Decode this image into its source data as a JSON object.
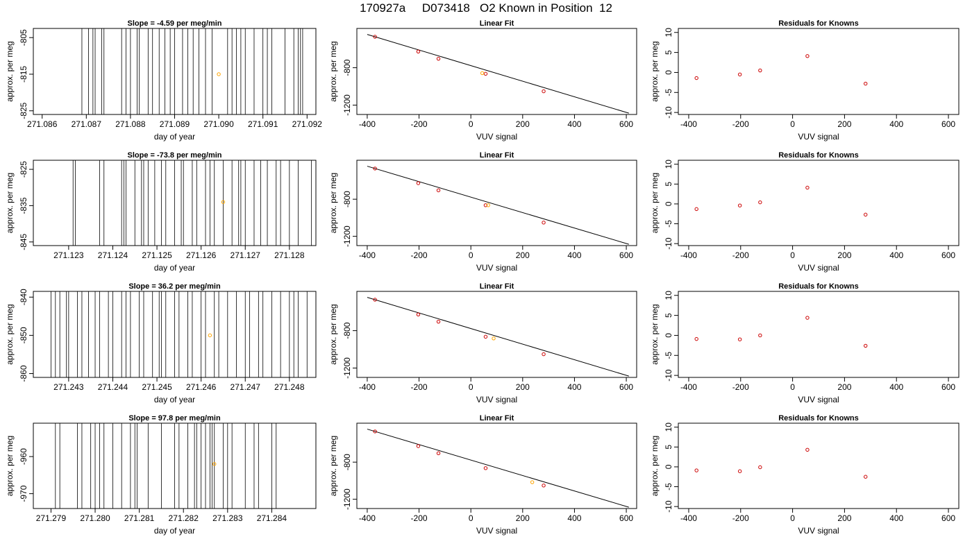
{
  "page": {
    "title": "170927a     D073418   O2 Known in Position  12"
  },
  "chart_data": [
    {
      "type": "line",
      "kind": "timeseries",
      "title": "Slope =  -4.59  per meg/min",
      "xlabel": "day of year",
      "ylabel": "approx. per meg",
      "xlim": [
        271.0858,
        271.0922
      ],
      "ylim": [
        -826,
        -802.5
      ],
      "xticks": [
        "271.086",
        "271.087",
        "271.088",
        "271.089",
        "271.090",
        "271.091",
        "271.092"
      ],
      "yticks": [
        "-805",
        "-815",
        "-825"
      ],
      "grid": false,
      "vlines": [
        271.0869,
        271.08705,
        271.08715,
        271.0872,
        271.08735,
        271.0874,
        271.0878,
        271.0879,
        271.088,
        271.08815,
        271.0882,
        271.0884,
        271.0885,
        271.08865,
        271.08878,
        271.0889,
        271.089,
        271.08918,
        271.0893,
        271.08942,
        271.08955,
        271.0897,
        271.08985,
        271.0902,
        271.0903,
        271.0904,
        271.0905,
        271.0906,
        271.0908,
        271.091,
        271.0911,
        271.0912,
        271.0915,
        271.0917,
        271.0918,
        271.09185,
        271.0919
      ],
      "highlight": {
        "x": 271.09,
        "y": -815
      },
      "series_color": "#000000",
      "highlight_color": "#ffa500"
    },
    {
      "type": "scatter",
      "kind": "fit",
      "title": "Linear Fit",
      "xlabel": "VUV signal",
      "ylabel": "approx. per meg",
      "xlim": [
        -440,
        640
      ],
      "ylim": [
        -1300,
        -380
      ],
      "xticks": [
        "-400",
        "-200",
        "0",
        "200",
        "400",
        "600"
      ],
      "yticks": [
        "-800",
        "-1200"
      ],
      "x": [
        -370,
        -203,
        -125,
        57,
        281
      ],
      "y": [
        -469,
        -627,
        -704,
        -865,
        -1052
      ],
      "line": [
        [
          -400,
          -444
        ],
        [
          610,
          -1286
        ]
      ],
      "highlight": {
        "x": 44,
        "y": -858
      },
      "point_color": "#cc0000",
      "highlight_color": "#ffa500"
    },
    {
      "type": "scatter",
      "kind": "residual",
      "title": "Residuals for Knowns",
      "xlabel": "VUV signal",
      "ylabel": "approx. per meg",
      "xlim": [
        -440,
        640
      ],
      "ylim": [
        -10.5,
        11
      ],
      "xticks": [
        "-400",
        "-200",
        "0",
        "200",
        "400",
        "600"
      ],
      "yticks": [
        "-10",
        "-5",
        "0",
        "5",
        "10"
      ],
      "x": [
        -370,
        -203,
        -125,
        57,
        281
      ],
      "y": [
        -1.4,
        -0.5,
        0.5,
        4.1,
        -2.8
      ],
      "point_color": "#cc0000"
    },
    {
      "type": "line",
      "kind": "timeseries",
      "title": "Slope =  -73.8  per meg/min",
      "xlabel": "day of year",
      "ylabel": "approx. per meg",
      "xlim": [
        271.1222,
        271.1286
      ],
      "ylim": [
        -846,
        -822.5
      ],
      "xticks": [
        "271.123",
        "271.124",
        "271.125",
        "271.126",
        "271.127",
        "271.128"
      ],
      "yticks": [
        "-825",
        "-835",
        "-845"
      ],
      "grid": false,
      "vlines": [
        271.1231,
        271.12315,
        271.1237,
        271.1238,
        271.1242,
        271.12425,
        271.1243,
        271.1245,
        271.12465,
        271.1247,
        271.1248,
        271.12495,
        271.1251,
        271.1252,
        271.1254,
        271.12555,
        271.1256,
        271.1258,
        271.1259,
        271.1261,
        271.1262,
        271.1263,
        271.1265,
        271.1267,
        271.12685,
        271.1269,
        271.127,
        271.1272,
        271.12735,
        271.1275,
        271.1277,
        271.1278,
        271.128,
        271.1282,
        271.1285
      ],
      "highlight": {
        "x": 271.1265,
        "y": -834
      },
      "series_color": "#000000",
      "highlight_color": "#ffa500"
    },
    {
      "type": "scatter",
      "kind": "fit",
      "title": "Linear Fit",
      "xlabel": "VUV signal",
      "ylabel": "approx. per meg",
      "xlim": [
        -440,
        640
      ],
      "ylim": [
        -1300,
        -380
      ],
      "xticks": [
        "-400",
        "-200",
        "0",
        "200",
        "400",
        "600"
      ],
      "yticks": [
        "-800",
        "-1200"
      ],
      "x": [
        -370,
        -203,
        -125,
        57,
        281
      ],
      "y": [
        -469,
        -627,
        -704,
        -865,
        -1052
      ],
      "line": [
        [
          -400,
          -444
        ],
        [
          610,
          -1286
        ]
      ],
      "highlight": {
        "x": 67,
        "y": -865
      },
      "point_color": "#cc0000",
      "highlight_color": "#ffa500"
    },
    {
      "type": "scatter",
      "kind": "residual",
      "title": "Residuals for Knowns",
      "xlabel": "VUV signal",
      "ylabel": "approx. per meg",
      "xlim": [
        -440,
        640
      ],
      "ylim": [
        -10.5,
        11
      ],
      "xticks": [
        "-400",
        "-200",
        "0",
        "200",
        "400",
        "600"
      ],
      "yticks": [
        "-10",
        "-5",
        "0",
        "5",
        "10"
      ],
      "x": [
        -370,
        -203,
        -125,
        57,
        281
      ],
      "y": [
        -1.3,
        -0.4,
        0.4,
        4.1,
        -2.7
      ],
      "point_color": "#cc0000"
    },
    {
      "type": "line",
      "kind": "timeseries",
      "title": "Slope =  36.2  per meg/min",
      "xlabel": "day of year",
      "ylabel": "approx. per meg",
      "xlim": [
        271.2422,
        271.2486
      ],
      "ylim": [
        -861,
        -838.5
      ],
      "xticks": [
        "271.243",
        "271.244",
        "271.245",
        "271.246",
        "271.247",
        "271.248"
      ],
      "yticks": [
        "-840",
        "-850",
        "-860"
      ],
      "grid": false,
      "vlines": [
        271.2426,
        271.2427,
        271.2428,
        271.24295,
        271.243,
        271.2432,
        271.2433,
        271.24345,
        271.2436,
        271.2437,
        271.2439,
        271.244,
        271.2442,
        271.2443,
        271.2444,
        271.2446,
        271.2447,
        271.2449,
        271.24505,
        271.2451,
        271.2452,
        271.2454,
        271.2455,
        271.2457,
        271.2458,
        271.246,
        271.2461,
        271.2463,
        271.2464,
        271.2466,
        271.2468,
        271.247,
        271.2471,
        271.2473,
        271.2474,
        271.2476,
        271.2478,
        271.248,
        271.2481,
        271.2482,
        271.2484
      ],
      "highlight": {
        "x": 271.2462,
        "y": -850
      },
      "series_color": "#000000",
      "highlight_color": "#ffa500"
    },
    {
      "type": "scatter",
      "kind": "fit",
      "title": "Linear Fit",
      "xlabel": "VUV signal",
      "ylabel": "approx. per meg",
      "xlim": [
        -440,
        640
      ],
      "ylim": [
        -1300,
        -380
      ],
      "xticks": [
        "-400",
        "-200",
        "0",
        "200",
        "400",
        "600"
      ],
      "yticks": [
        "-800",
        "-1200"
      ],
      "x": [
        -370,
        -203,
        -125,
        57,
        281
      ],
      "y": [
        -469,
        -627,
        -704,
        -865,
        -1052
      ],
      "line": [
        [
          -400,
          -444
        ],
        [
          610,
          -1286
        ]
      ],
      "highlight": {
        "x": 88,
        "y": -883
      },
      "point_color": "#cc0000",
      "highlight_color": "#ffa500"
    },
    {
      "type": "scatter",
      "kind": "residual",
      "title": "Residuals for Knowns",
      "xlabel": "VUV signal",
      "ylabel": "approx. per meg",
      "xlim": [
        -440,
        640
      ],
      "ylim": [
        -10.5,
        11
      ],
      "xticks": [
        "-400",
        "-200",
        "0",
        "200",
        "400",
        "600"
      ],
      "yticks": [
        "-10",
        "-5",
        "0",
        "5",
        "10"
      ],
      "x": [
        -370,
        -203,
        -125,
        57,
        281
      ],
      "y": [
        -0.9,
        -1.0,
        0.0,
        4.4,
        -2.6
      ],
      "point_color": "#cc0000"
    },
    {
      "type": "line",
      "kind": "timeseries",
      "title": "Slope =  97.8  per meg/min",
      "xlabel": "day of year",
      "ylabel": "approx. per meg",
      "xlim": [
        271.2786,
        271.285
      ],
      "ylim": [
        -974,
        -951
      ],
      "xticks": [
        "271.279",
        "271.280",
        "271.281",
        "271.282",
        "271.283",
        "271.284"
      ],
      "yticks": [
        "-960",
        "-970"
      ],
      "grid": false,
      "vlines": [
        271.2791,
        271.2792,
        271.2796,
        271.2797,
        271.2799,
        271.28,
        271.2801,
        271.2802,
        271.2804,
        271.2806,
        271.2808,
        271.2809,
        271.28095,
        271.2812,
        271.2815,
        271.2818,
        271.2819,
        271.2821,
        271.28225,
        271.2823,
        271.2824,
        271.2825,
        271.2826,
        271.28265,
        271.2827,
        271.2829,
        271.283,
        271.2831,
        271.2834,
        271.2836,
        271.2837,
        271.284,
        271.2841
      ],
      "highlight": {
        "x": 271.2827,
        "y": -962
      },
      "series_color": "#000000",
      "highlight_color": "#ffa500"
    },
    {
      "type": "scatter",
      "kind": "fit",
      "title": "Linear Fit",
      "xlabel": "VUV signal",
      "ylabel": "approx. per meg",
      "xlim": [
        -440,
        640
      ],
      "ylim": [
        -1300,
        -380
      ],
      "xticks": [
        "-400",
        "-200",
        "0",
        "200",
        "400",
        "600"
      ],
      "yticks": [
        "-800",
        "-1200"
      ],
      "x": [
        -370,
        -203,
        -125,
        57,
        281
      ],
      "y": [
        -469,
        -627,
        -704,
        -865,
        -1052
      ],
      "line": [
        [
          -400,
          -444
        ],
        [
          610,
          -1286
        ]
      ],
      "highlight": {
        "x": 237,
        "y": -1016
      },
      "point_color": "#cc0000",
      "highlight_color": "#ffa500"
    },
    {
      "type": "scatter",
      "kind": "residual",
      "title": "Residuals for Knowns",
      "xlabel": "VUV signal",
      "ylabel": "approx. per meg",
      "xlim": [
        -440,
        640
      ],
      "ylim": [
        -10.5,
        11
      ],
      "xticks": [
        "-400",
        "-200",
        "0",
        "200",
        "400",
        "600"
      ],
      "yticks": [
        "-10",
        "-5",
        "0",
        "5",
        "10"
      ],
      "x": [
        -370,
        -203,
        -125,
        57,
        281
      ],
      "y": [
        -0.9,
        -1.1,
        -0.1,
        4.3,
        -2.5
      ],
      "point_color": "#cc0000"
    }
  ]
}
